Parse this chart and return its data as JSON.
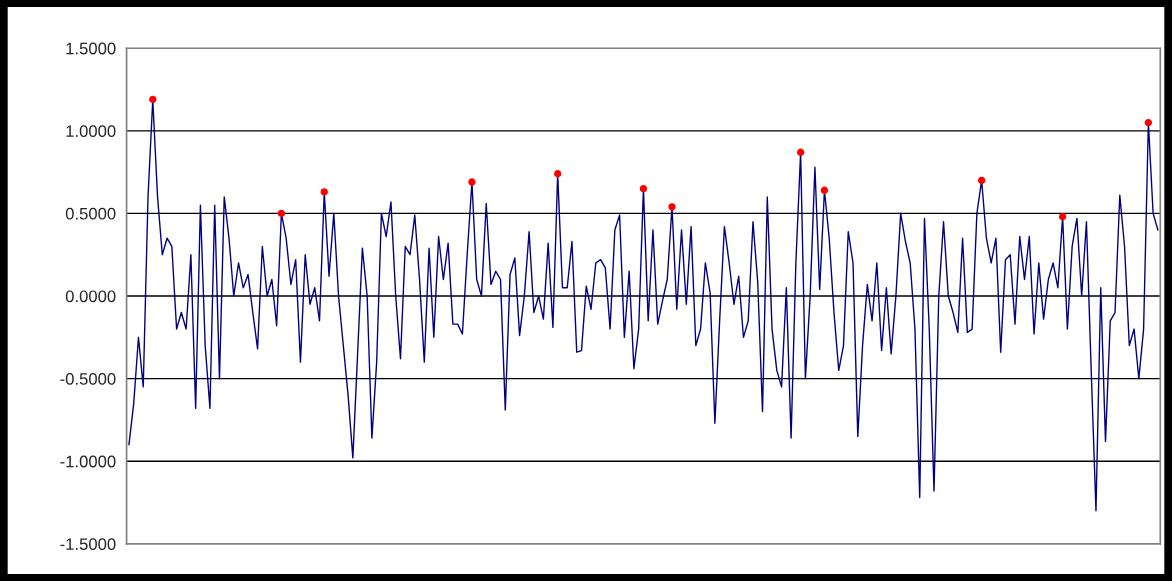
{
  "chart_data": {
    "type": "line",
    "tick_labels": "y",
    "grid": "y",
    "legend": false,
    "categories": [
      null,
      null,
      null,
      null,
      null,
      null,
      null,
      null,
      null,
      null,
      null,
      null,
      null,
      null,
      null,
      null,
      null,
      null,
      null,
      null,
      null,
      null,
      null,
      null,
      null,
      null,
      null,
      null,
      null,
      null,
      null,
      null,
      null,
      null,
      null,
      null,
      null,
      null,
      null,
      null,
      null,
      null,
      null,
      null,
      null,
      null,
      null,
      null,
      null,
      null,
      null,
      null,
      null,
      null,
      null,
      null,
      null,
      null,
      null,
      null,
      null,
      null,
      null,
      null,
      null,
      null,
      null,
      null,
      null,
      null,
      null,
      null,
      null,
      null,
      null,
      null,
      null,
      null,
      null,
      null,
      null,
      null,
      null,
      null,
      null,
      null,
      null,
      null,
      null,
      null,
      null,
      null,
      null,
      null,
      null,
      null,
      null,
      null,
      null,
      null,
      null,
      null,
      null,
      null,
      null,
      null,
      null,
      null,
      null,
      null,
      null,
      null,
      null,
      null,
      null,
      null,
      null,
      null,
      null,
      null,
      null,
      null,
      null,
      null,
      null,
      null,
      null,
      null,
      null,
      null,
      null,
      null,
      null,
      null,
      null,
      null,
      null,
      null,
      null,
      null,
      null,
      null,
      null,
      null,
      null,
      null,
      null,
      null,
      null,
      null,
      null,
      null,
      null,
      null,
      null,
      null,
      null,
      null,
      null,
      null,
      null,
      null,
      null,
      null,
      null,
      null,
      null,
      null,
      null,
      null,
      null,
      null,
      null,
      null,
      null,
      null,
      null,
      null,
      null,
      null,
      null,
      null,
      null,
      null,
      null,
      null,
      null,
      null,
      null,
      null,
      null,
      null,
      null,
      null,
      null,
      null,
      null,
      null,
      null,
      null,
      null,
      null,
      null,
      null,
      null,
      null,
      null,
      null,
      null,
      null,
      null,
      null,
      null,
      null,
      null,
      null,
      null
    ],
    "ylim": [
      -1.5,
      1.5
    ],
    "yticks": [
      {
        "value": -1.5,
        "label": "-1.5000"
      },
      {
        "value": -1.0,
        "label": "-1.0000"
      },
      {
        "value": -0.5,
        "label": "-0.5000"
      },
      {
        "value": 0,
        "label": "0.0000"
      },
      {
        "value": 0.5,
        "label": "0.5000"
      },
      {
        "value": 1.0,
        "label": "1.0000"
      },
      {
        "value": 1.5,
        "label": "1.5000"
      }
    ],
    "series": [
      {
        "color": "#000080",
        "marker": "none",
        "line_style": "solid",
        "values": [
          -0.9,
          -0.65,
          -0.25,
          -0.55,
          0.6,
          1.19,
          0.6,
          0.25,
          0.35,
          0.3,
          -0.2,
          -0.1,
          -0.2,
          0.25,
          -0.68,
          0.55,
          -0.3,
          -0.68,
          0.55,
          -0.5,
          0.6,
          0.35,
          0.0,
          0.2,
          0.05,
          0.13,
          -0.1,
          -0.32,
          0.3,
          0.0,
          0.1,
          -0.18,
          0.5,
          0.35,
          0.07,
          0.22,
          -0.4,
          0.25,
          -0.05,
          0.05,
          -0.15,
          0.63,
          0.12,
          0.5,
          0.0,
          -0.3,
          -0.6,
          -0.98,
          -0.35,
          0.29,
          0.0,
          -0.86,
          -0.4,
          0.5,
          0.36,
          0.57,
          0.0,
          -0.38,
          0.3,
          0.25,
          0.49,
          0.1,
          -0.4,
          0.29,
          -0.25,
          0.36,
          0.1,
          0.32,
          -0.17,
          -0.17,
          -0.23,
          0.25,
          0.69,
          0.1,
          0.0,
          0.56,
          0.07,
          0.15,
          0.1,
          -0.69,
          0.13,
          0.23,
          -0.24,
          0.0,
          0.39,
          -0.1,
          0.0,
          -0.14,
          0.32,
          -0.19,
          0.74,
          0.05,
          0.05,
          0.33,
          -0.34,
          -0.33,
          0.06,
          -0.08,
          0.2,
          0.22,
          0.17,
          -0.2,
          0.4,
          0.49,
          -0.25,
          0.15,
          -0.44,
          -0.2,
          0.65,
          -0.15,
          0.4,
          -0.17,
          -0.03,
          0.1,
          0.54,
          -0.08,
          0.4,
          -0.05,
          0.42,
          -0.3,
          -0.2,
          0.2,
          0.02,
          -0.77,
          -0.15,
          0.42,
          0.2,
          -0.05,
          0.12,
          -0.25,
          -0.15,
          0.45,
          0.08,
          -0.7,
          0.6,
          -0.2,
          -0.45,
          -0.55,
          0.05,
          -0.86,
          0.2,
          0.87,
          -0.5,
          0.0,
          0.78,
          0.04,
          0.64,
          0.35,
          -0.1,
          -0.45,
          -0.3,
          0.39,
          0.2,
          -0.85,
          -0.3,
          0.07,
          -0.15,
          0.2,
          -0.33,
          0.05,
          -0.35,
          0.0,
          0.5,
          0.33,
          0.2,
          -0.2,
          -1.22,
          0.47,
          -0.2,
          -1.18,
          0.0,
          0.45,
          0.0,
          -0.1,
          -0.22,
          0.35,
          -0.22,
          -0.2,
          0.5,
          0.7,
          0.35,
          0.2,
          0.35,
          -0.34,
          0.22,
          0.25,
          -0.17,
          0.36,
          0.1,
          0.36,
          -0.23,
          0.2,
          -0.14,
          0.1,
          0.2,
          0.05,
          0.48,
          -0.2,
          0.3,
          0.47,
          0.0,
          0.45,
          -0.45,
          -1.3,
          0.05,
          -0.88,
          -0.15,
          -0.1,
          0.61,
          0.3,
          -0.3,
          -0.2,
          -0.5,
          -0.2,
          1.05,
          0.5,
          0.4
        ]
      },
      {
        "type": "scatter",
        "color": "#ff0000",
        "marker": "circle",
        "values": [
          null,
          null,
          null,
          null,
          null,
          1.19,
          null,
          null,
          null,
          null,
          null,
          null,
          null,
          null,
          null,
          null,
          null,
          null,
          null,
          null,
          null,
          null,
          null,
          null,
          null,
          null,
          null,
          null,
          null,
          null,
          null,
          null,
          0.5,
          null,
          null,
          null,
          null,
          null,
          null,
          null,
          null,
          0.63,
          null,
          null,
          null,
          null,
          null,
          null,
          null,
          null,
          null,
          null,
          null,
          null,
          null,
          null,
          null,
          null,
          null,
          null,
          null,
          null,
          null,
          null,
          null,
          null,
          null,
          null,
          null,
          null,
          null,
          null,
          0.69,
          null,
          null,
          null,
          null,
          null,
          null,
          null,
          null,
          null,
          null,
          null,
          null,
          null,
          null,
          null,
          null,
          null,
          0.74,
          null,
          null,
          null,
          null,
          null,
          null,
          null,
          null,
          null,
          null,
          null,
          null,
          null,
          null,
          null,
          null,
          null,
          0.65,
          null,
          null,
          null,
          null,
          null,
          0.54,
          null,
          null,
          null,
          null,
          null,
          null,
          null,
          null,
          null,
          null,
          null,
          null,
          null,
          null,
          null,
          null,
          null,
          null,
          null,
          null,
          null,
          null,
          null,
          null,
          null,
          null,
          0.87,
          null,
          null,
          null,
          null,
          0.64,
          null,
          null,
          null,
          null,
          null,
          null,
          null,
          null,
          null,
          null,
          null,
          null,
          null,
          null,
          null,
          null,
          null,
          null,
          null,
          null,
          null,
          null,
          null,
          null,
          null,
          null,
          null,
          null,
          null,
          null,
          null,
          null,
          0.7,
          null,
          null,
          null,
          null,
          null,
          null,
          null,
          null,
          null,
          null,
          null,
          null,
          null,
          null,
          null,
          null,
          0.48,
          null,
          null,
          null,
          null,
          null,
          null,
          null,
          null,
          null,
          null,
          null,
          null,
          null,
          null,
          null,
          null,
          null,
          1.05,
          null,
          null
        ]
      }
    ]
  }
}
